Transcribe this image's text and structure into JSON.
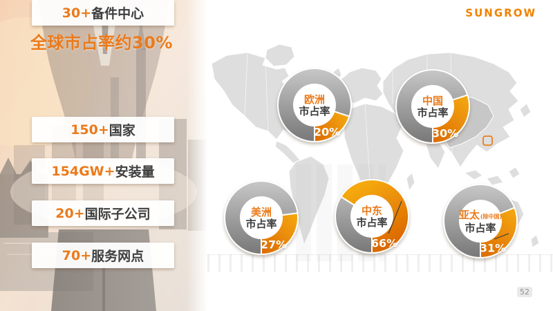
{
  "slide": {
    "logo_text": "SUNGROW",
    "page_number": "52"
  },
  "sidebar": {
    "title": "全球市占率约30%",
    "stats": [
      {
        "number": "150+",
        "label": "国家"
      },
      {
        "number": "154GW+",
        "label": "安装量"
      },
      {
        "number": "20+",
        "label": "国际子公司"
      },
      {
        "number": "70+",
        "label": "服务网点"
      },
      {
        "number": "30+",
        "label": "备件中心"
      }
    ]
  },
  "chart_data": {
    "type": "pie",
    "variant": "donut",
    "title": "全球市占率约30%",
    "unit": "%",
    "legend": "none",
    "series": [
      {
        "region": "欧洲",
        "metric": "市占率",
        "value": 20,
        "value_label": "20%",
        "note": ""
      },
      {
        "region": "中国",
        "metric": "市占率",
        "value": 30,
        "value_label": "30%",
        "note": ""
      },
      {
        "region": "美洲",
        "metric": "市占率",
        "value": 27,
        "value_label": "27%",
        "note": ""
      },
      {
        "region": "中东",
        "metric": "市占率",
        "value": 66,
        "value_label": "66%",
        "note": ""
      },
      {
        "region": "亚太",
        "metric": "市占率",
        "value": 31,
        "value_label": "31%",
        "note": "(除中国)"
      }
    ],
    "colors": {
      "highlight_start": "#F5A90D",
      "highlight_end": "#DC6A02",
      "remainder_start": "#C7C7C7",
      "remainder_end": "#777777",
      "accent_orange": "#EB7A1A",
      "label_dark": "#3E3E3E",
      "map_gray": "#DBDBDB",
      "china_highlight_gray": "#C7C7C7"
    }
  }
}
